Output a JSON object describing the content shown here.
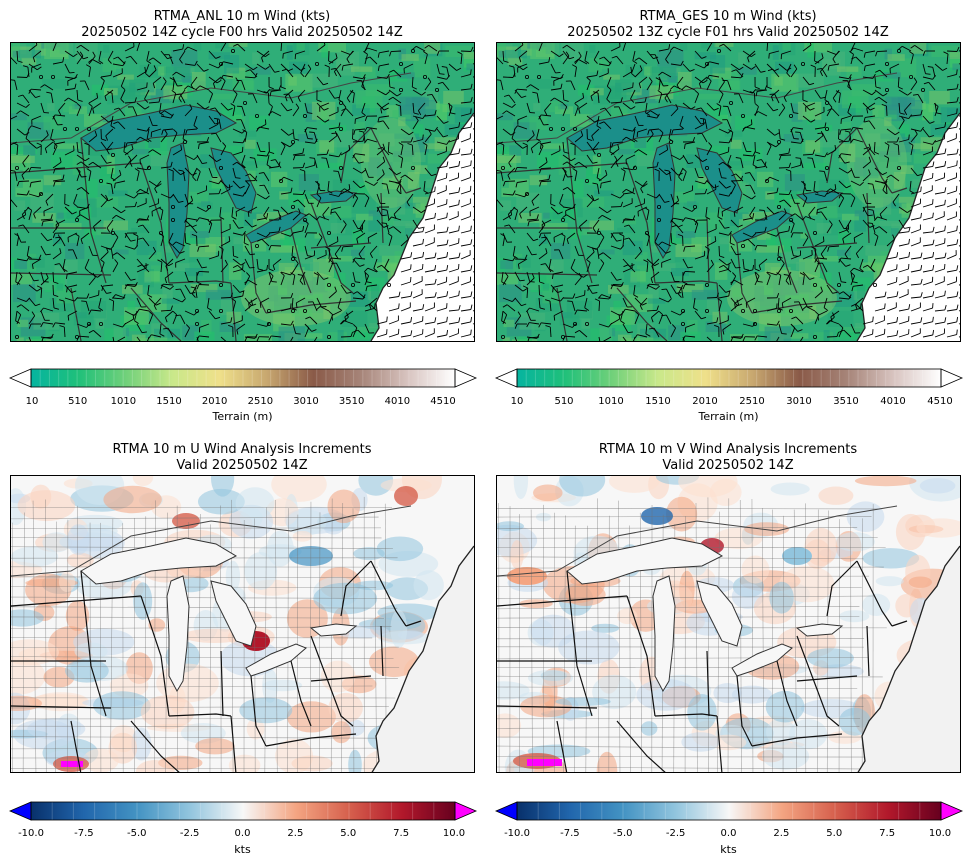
{
  "panels": {
    "anl": {
      "title_line1": "RTMA_ANL 10 m Wind (kts)",
      "title_line2": "20250502 14Z cycle F00 hrs Valid 20250502 14Z"
    },
    "ges": {
      "title_line1": "RTMA_GES 10 m Wind (kts)",
      "title_line2": "20250502 13Z cycle F01 hrs Valid 20250502 14Z"
    },
    "uinc": {
      "title_line1": "RTMA 10 m U Wind Analysis Increments",
      "title_line2": "Valid 20250502 14Z"
    },
    "vinc": {
      "title_line1": "RTMA 10 m V Wind Analysis Increments",
      "title_line2": "Valid 20250502 14Z"
    }
  },
  "terrain_colorbar": {
    "label": "Terrain (m)",
    "ticks": [
      "10",
      "510",
      "1010",
      "1510",
      "2010",
      "2510",
      "3010",
      "3510",
      "4010",
      "4510"
    ],
    "colors": [
      "#06b4a0",
      "#1fc07a",
      "#6fd07a",
      "#c9e88a",
      "#efe08a",
      "#c8a870",
      "#8a5a48",
      "#a68478",
      "#d8c4c0",
      "#ffffff"
    ]
  },
  "increment_colorbar": {
    "label": "kts",
    "ticks": [
      "-10.0",
      "-7.5",
      "-5.0",
      "-2.5",
      "0.0",
      "2.5",
      "5.0",
      "7.5",
      "10.0"
    ],
    "under_color": "#0000ff",
    "over_color": "#ff00ff",
    "colors": [
      "#08306b",
      "#2166ac",
      "#4393c3",
      "#92c5de",
      "#f7f7f7",
      "#f4a582",
      "#d6604d",
      "#b2182b",
      "#67001f"
    ]
  }
}
